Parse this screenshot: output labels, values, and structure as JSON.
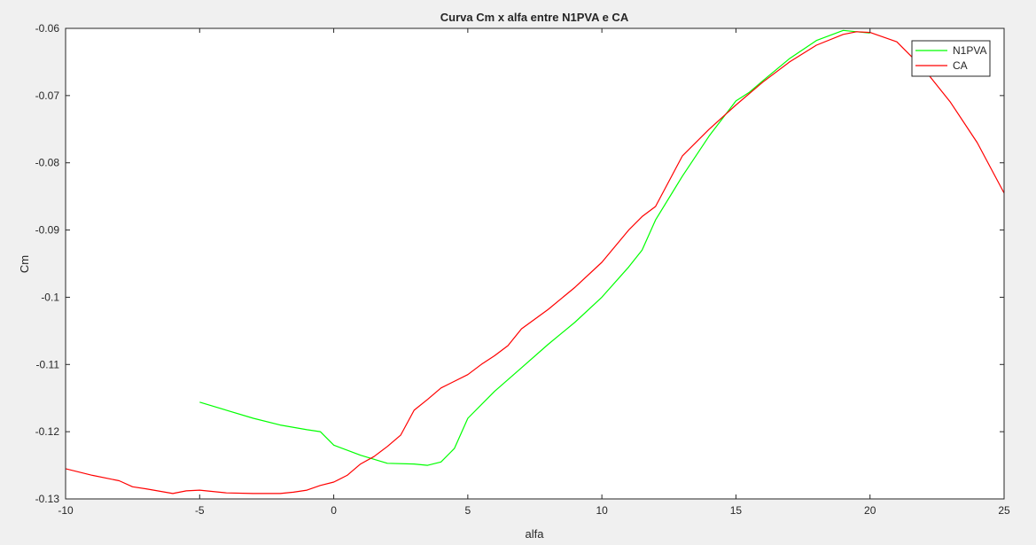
{
  "figure": {
    "background": "#f0f0f0",
    "axes_background": "#ffffff"
  },
  "chart_data": {
    "type": "line",
    "title": "Curva Cm x alfa entre N1PVA e CA",
    "xlabel": "alfa",
    "ylabel": "Cm",
    "xlim": [
      -10,
      25
    ],
    "ylim": [
      -0.13,
      -0.06
    ],
    "xticks": [
      -10,
      -5,
      0,
      5,
      10,
      15,
      20,
      25
    ],
    "xtick_labels": [
      "-10",
      "-5",
      "0",
      "5",
      "10",
      "15",
      "20",
      "25"
    ],
    "yticks": [
      -0.13,
      -0.12,
      -0.11,
      -0.1,
      -0.09,
      -0.08,
      -0.07,
      -0.06
    ],
    "ytick_labels": [
      "-0.13",
      "-0.12",
      "-0.11",
      "-0.1",
      "-0.09",
      "-0.08",
      "-0.07",
      "-0.06"
    ],
    "grid": false,
    "legend_position": "top-right",
    "series": [
      {
        "name": "N1PVA",
        "color": "#00ff00",
        "x": [
          -5,
          -4,
          -3,
          -2,
          -1,
          -0.5,
          0,
          1,
          2,
          3,
          3.5,
          4,
          4.5,
          5,
          6,
          7,
          8,
          9,
          10,
          11,
          11.5,
          12,
          13,
          14,
          15,
          15.5,
          16,
          17,
          18,
          19,
          20
        ],
        "y": [
          -0.1156,
          -0.1168,
          -0.118,
          -0.119,
          -0.1197,
          -0.12,
          -0.122,
          -0.1235,
          -0.1247,
          -0.1248,
          -0.125,
          -0.1245,
          -0.1225,
          -0.118,
          -0.114,
          -0.1105,
          -0.107,
          -0.1037,
          -0.1,
          -0.0955,
          -0.093,
          -0.0885,
          -0.082,
          -0.076,
          -0.0708,
          -0.0695,
          -0.0678,
          -0.0645,
          -0.0618,
          -0.0603,
          -0.0607
        ]
      },
      {
        "name": "CA",
        "color": "#ff0000",
        "x": [
          -10,
          -9,
          -8,
          -7.5,
          -7,
          -6,
          -5.5,
          -5,
          -4,
          -3,
          -2,
          -1.5,
          -1,
          -0.5,
          0,
          0.5,
          1,
          1.5,
          2,
          2.5,
          3,
          3.5,
          4,
          5,
          5.5,
          6,
          6.5,
          7,
          8,
          9,
          10,
          11,
          11.5,
          12,
          13,
          14,
          15,
          16,
          17,
          18,
          19,
          19.5,
          20,
          21,
          22,
          23,
          24,
          25
        ],
        "y": [
          -0.1255,
          -0.1265,
          -0.1273,
          -0.1282,
          -0.1285,
          -0.1292,
          -0.1288,
          -0.1287,
          -0.1291,
          -0.1292,
          -0.1292,
          -0.129,
          -0.1287,
          -0.128,
          -0.1275,
          -0.1265,
          -0.1248,
          -0.1237,
          -0.1222,
          -0.1205,
          -0.1168,
          -0.1152,
          -0.1135,
          -0.1115,
          -0.11,
          -0.1087,
          -0.1072,
          -0.1047,
          -0.1018,
          -0.0985,
          -0.0948,
          -0.09,
          -0.088,
          -0.0865,
          -0.079,
          -0.075,
          -0.0714,
          -0.068,
          -0.065,
          -0.0625,
          -0.0609,
          -0.0605,
          -0.0606,
          -0.062,
          -0.066,
          -0.071,
          -0.077,
          -0.0845
        ]
      }
    ]
  }
}
